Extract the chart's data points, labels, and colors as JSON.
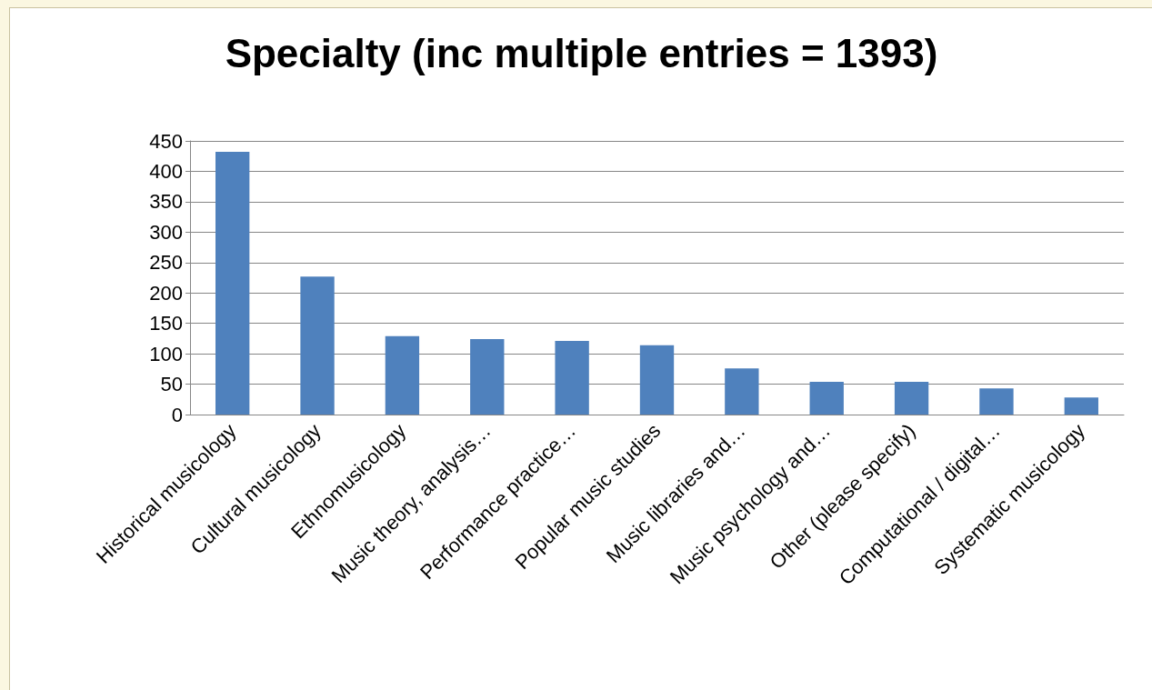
{
  "chart_data": {
    "type": "bar",
    "title": "Specialty (inc multiple entries = 1393)",
    "categories": [
      "Historical musicology",
      "Cultural musicology",
      "Ethnomusicology",
      "Music theory, analysis…",
      "Performance practice…",
      "Popular music studies",
      "Music libraries and…",
      "Music psychology and…",
      "Other (please specify)",
      "Computational / digital…",
      "Systematic musicology"
    ],
    "values": [
      432,
      227,
      129,
      124,
      121,
      114,
      76,
      54,
      54,
      43,
      28
    ],
    "color": "#4f81bd",
    "ylim": [
      0,
      450
    ],
    "yticks": [
      0,
      50,
      100,
      150,
      200,
      250,
      300,
      350,
      400,
      450
    ],
    "grid": "y"
  }
}
